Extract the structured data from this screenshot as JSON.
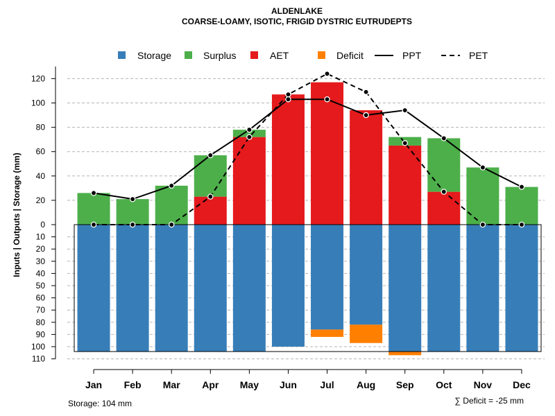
{
  "chart_data": {
    "type": "bar",
    "title": "ALDENLAKE",
    "subtitle": "COARSE-LOAMY, ISOTIC, FRIGID DYSTRIC EUTRUDEPTS",
    "ylabel": "Inputs | Outputs | Storage    (mm)",
    "xlabel": "",
    "categories": [
      "Jan",
      "Feb",
      "Mar",
      "Apr",
      "May",
      "Jun",
      "Jul",
      "Aug",
      "Sep",
      "Oct",
      "Nov",
      "Dec"
    ],
    "ylim": [
      -110,
      130
    ],
    "yticks_up": [
      0,
      20,
      40,
      60,
      80,
      100,
      120
    ],
    "yticks_down": [
      10,
      20,
      30,
      40,
      50,
      60,
      70,
      80,
      90,
      100,
      110
    ],
    "grid": true,
    "legend_position": "top",
    "series": [
      {
        "name": "AET",
        "color": "#E41A1C",
        "values": [
          0,
          0,
          0,
          23,
          72,
          107,
          117,
          94,
          65,
          27,
          0,
          0
        ]
      },
      {
        "name": "Surplus",
        "color": "#4DAF4A",
        "values": [
          26,
          21,
          32,
          34,
          6,
          0,
          0,
          0,
          7,
          44,
          47,
          31
        ]
      },
      {
        "name": "Storage",
        "color": "#377EB8",
        "values": [
          104,
          104,
          104,
          104,
          104,
          100,
          86,
          82,
          104,
          104,
          104,
          104
        ]
      },
      {
        "name": "Deficit",
        "color": "#FF7F00",
        "values": [
          0,
          0,
          0,
          0,
          0,
          0,
          6,
          15,
          3,
          0,
          0,
          0
        ]
      },
      {
        "name": "PPT",
        "color": "#000000",
        "line_style": "solid",
        "values": [
          26,
          21,
          32,
          57,
          78,
          103,
          103,
          90,
          94,
          71,
          47,
          31
        ]
      },
      {
        "name": "PET",
        "color": "#000000",
        "line_style": "dashed",
        "values": [
          0,
          0,
          0,
          23,
          72,
          107,
          124,
          109,
          67,
          27,
          0,
          0
        ]
      }
    ],
    "legend": [
      "Storage",
      "Surplus",
      "AET",
      "Deficit",
      "PPT",
      "PET"
    ],
    "storage_capacity": 104,
    "storage_note": "Storage: 104 mm",
    "deficit_sum_note": "∑ Deficit = -25 mm"
  }
}
